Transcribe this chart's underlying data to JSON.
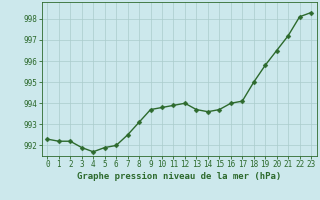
{
  "x": [
    0,
    1,
    2,
    3,
    4,
    5,
    6,
    7,
    8,
    9,
    10,
    11,
    12,
    13,
    14,
    15,
    16,
    17,
    18,
    19,
    20,
    21,
    22,
    23
  ],
  "y": [
    992.3,
    992.2,
    992.2,
    991.9,
    991.7,
    991.9,
    992.0,
    992.5,
    993.1,
    993.7,
    993.8,
    993.9,
    994.0,
    993.7,
    993.6,
    993.7,
    994.0,
    994.1,
    995.0,
    995.8,
    996.5,
    997.2,
    998.1,
    998.3
  ],
  "line_color": "#2d6a2d",
  "marker_color": "#2d6a2d",
  "bg_color": "#cce8ec",
  "grid_color": "#aacccc",
  "xlabel": "Graphe pression niveau de la mer (hPa)",
  "ylim": [
    991.5,
    998.8
  ],
  "xlim": [
    -0.5,
    23.5
  ],
  "yticks": [
    992,
    993,
    994,
    995,
    996,
    997,
    998
  ],
  "xticks": [
    0,
    1,
    2,
    3,
    4,
    5,
    6,
    7,
    8,
    9,
    10,
    11,
    12,
    13,
    14,
    15,
    16,
    17,
    18,
    19,
    20,
    21,
    22,
    23
  ],
  "xtick_labels": [
    "0",
    "1",
    "2",
    "3",
    "4",
    "5",
    "6",
    "7",
    "8",
    "9",
    "10",
    "11",
    "12",
    "13",
    "14",
    "15",
    "16",
    "17",
    "18",
    "19",
    "20",
    "21",
    "22",
    "23"
  ],
  "label_fontsize": 6.5,
  "tick_fontsize": 5.5,
  "line_width": 1.0,
  "marker_size": 2.5
}
